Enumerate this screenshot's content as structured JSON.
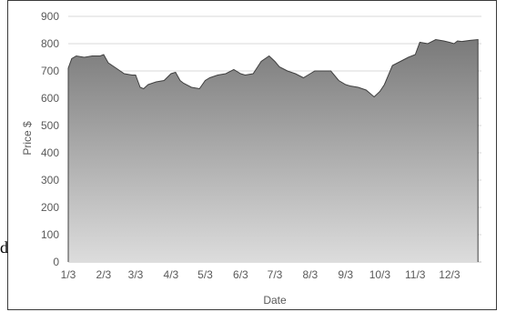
{
  "edge_fragment": "d",
  "chart_data": {
    "type": "area",
    "title": "",
    "xlabel": "Date",
    "ylabel": "Price $",
    "ylim": [
      0,
      900
    ],
    "yticks": [
      "0",
      "100",
      "200",
      "300",
      "400",
      "500",
      "600",
      "700",
      "800",
      "900"
    ],
    "xticks": [
      "1/3",
      "2/3",
      "3/3",
      "4/3",
      "5/3",
      "6/3",
      "7/3",
      "8/3",
      "9/3",
      "10/3",
      "11/3",
      "12/3"
    ],
    "grid": "horizontal",
    "legend": "none",
    "colors": {
      "fill_top": "#7a7a7a",
      "fill_bottom": "#dcdcdc",
      "line": "#404040",
      "grid": "#d9d9d9",
      "axis": "#bfbfbf"
    },
    "series": [
      {
        "x": [
          "1/3",
          "1/6",
          "1/10",
          "1/17",
          "1/24",
          "1/31",
          "2/3",
          "2/7",
          "2/14",
          "2/21",
          "2/28",
          "3/3",
          "3/7",
          "3/10",
          "3/14",
          "3/21",
          "3/28",
          "4/3",
          "4/7",
          "4/11",
          "4/14",
          "4/21",
          "4/28",
          "5/3",
          "5/7",
          "5/14",
          "5/21",
          "5/28",
          "6/3",
          "6/7",
          "6/14",
          "6/21",
          "6/28",
          "7/3",
          "7/7",
          "7/14",
          "7/21",
          "7/28",
          "8/3",
          "8/7",
          "8/14",
          "8/21",
          "8/28",
          "9/3",
          "9/7",
          "9/14",
          "9/21",
          "9/28",
          "10/3",
          "10/7",
          "10/14",
          "10/21",
          "10/28",
          "11/3",
          "11/7",
          "11/14",
          "11/21",
          "11/28",
          "12/3",
          "12/7",
          "12/10",
          "12/14",
          "12/21",
          "12/28"
        ],
        "values": [
          710,
          745,
          755,
          750,
          755,
          755,
          760,
          730,
          710,
          690,
          685,
          685,
          640,
          635,
          650,
          660,
          665,
          690,
          695,
          665,
          655,
          640,
          635,
          665,
          675,
          685,
          690,
          705,
          690,
          685,
          690,
          735,
          755,
          735,
          715,
          700,
          690,
          675,
          690,
          700,
          700,
          700,
          665,
          650,
          645,
          640,
          630,
          605,
          625,
          650,
          720,
          735,
          750,
          760,
          805,
          800,
          815,
          810,
          805,
          800,
          810,
          808,
          812,
          815
        ]
      }
    ]
  }
}
